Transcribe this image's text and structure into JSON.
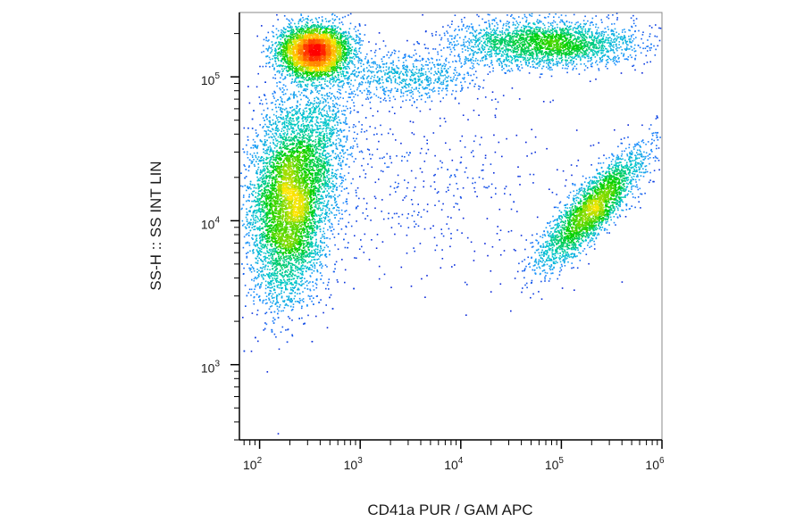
{
  "chart_data": {
    "type": "scatter",
    "subtype": "flow-cytometry density dot plot",
    "xlabel": "CD41a PUR / GAM APC",
    "ylabel": "SS-H :: SS INT LIN",
    "x_scale": "log",
    "y_scale": "log",
    "xlim": [
      63,
      1000000
    ],
    "ylim": [
      300,
      280000
    ],
    "x_ticks": [
      {
        "base": "10",
        "exp": "2",
        "value": 100
      },
      {
        "base": "10",
        "exp": "3",
        "value": 1000
      },
      {
        "base": "10",
        "exp": "4",
        "value": 10000
      },
      {
        "base": "10",
        "exp": "5",
        "value": 100000
      },
      {
        "base": "10",
        "exp": "6",
        "value": 1000000
      }
    ],
    "y_ticks": [
      {
        "base": "10",
        "exp": "3",
        "value": 1000
      },
      {
        "base": "10",
        "exp": "4",
        "value": 10000
      },
      {
        "base": "10",
        "exp": "5",
        "value": 100000
      }
    ],
    "density_colormap": [
      "#0000cc",
      "#1e90ff",
      "#00c8c8",
      "#00d000",
      "#ffe600",
      "#ff8c00",
      "#ff0000"
    ],
    "grid": false,
    "legend": "none",
    "populations": [
      {
        "center_x": 350,
        "center_y": 150000,
        "sigma_logx": 0.18,
        "sigma_logy": 0.09,
        "rho": 0.0,
        "count": 3800
      },
      {
        "center_x": 200,
        "center_y": 13000,
        "sigma_logx": 0.2,
        "sigma_logy": 0.33,
        "rho": 0.15,
        "count": 6500
      },
      {
        "center_x": 200000,
        "center_y": 12000,
        "sigma_logx": 0.26,
        "sigma_logy": 0.2,
        "rho": 0.85,
        "count": 2800
      },
      {
        "center_x": 70000,
        "center_y": 170000,
        "sigma_logx": 0.45,
        "sigma_logy": 0.08,
        "rho": 0.0,
        "count": 2600
      },
      {
        "center_x": 3000,
        "center_y": 100000,
        "sigma_logx": 0.35,
        "sigma_logy": 0.08,
        "rho": 0.0,
        "count": 700
      },
      {
        "center_x": 400,
        "center_y": 40000,
        "sigma_logx": 0.2,
        "sigma_logy": 0.25,
        "rho": 0.0,
        "count": 900
      },
      {
        "center_x": 5000,
        "center_y": 20000,
        "sigma_logx": 0.7,
        "sigma_logy": 0.35,
        "rho": 0.0,
        "count": 450
      }
    ]
  }
}
